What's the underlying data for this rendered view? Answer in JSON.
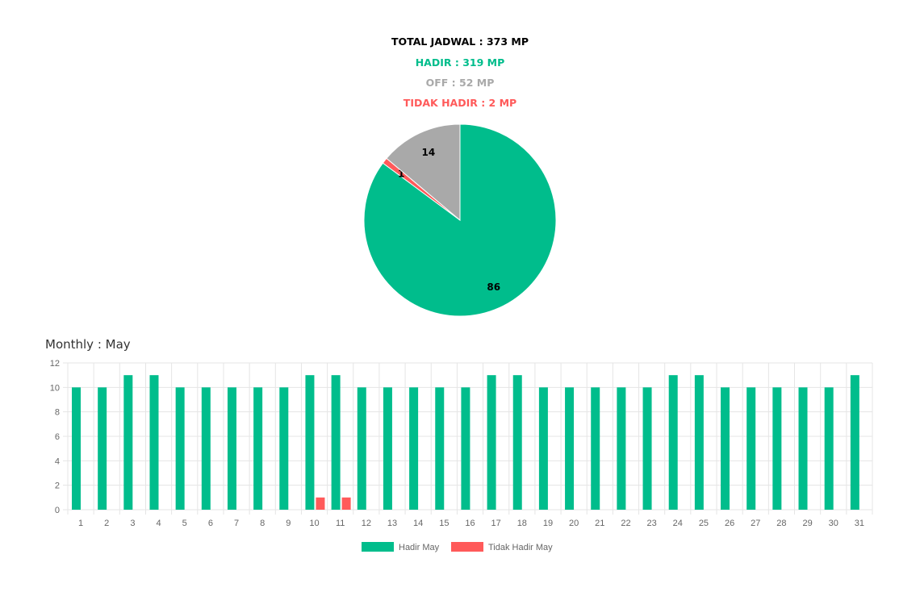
{
  "summary": {
    "total": "TOTAL JADWAL : 373 MP",
    "hadir": "HADIR : 319 MP",
    "off": "OFF : 52 MP",
    "tidak_hadir": "TIDAK HADIR : 2 MP"
  },
  "colors": {
    "hadir": "#00bd8c",
    "off": "#a9a9a9",
    "tidak_hadir": "#ff5a5a",
    "total": "#000000"
  },
  "monthly_title": "Monthly : May",
  "chart_data": [
    {
      "type": "pie",
      "slices": [
        {
          "label": "Hadir",
          "value": 86,
          "color": "#00bd8c"
        },
        {
          "label": "Tidak Hadir",
          "value": 1,
          "color": "#ff5a5a"
        },
        {
          "label": "Off",
          "value": 14,
          "color": "#a9a9a9"
        }
      ]
    },
    {
      "type": "bar",
      "categories": [
        "1",
        "2",
        "3",
        "4",
        "5",
        "6",
        "7",
        "8",
        "9",
        "10",
        "11",
        "12",
        "13",
        "14",
        "15",
        "16",
        "17",
        "18",
        "19",
        "20",
        "21",
        "22",
        "23",
        "24",
        "25",
        "26",
        "27",
        "28",
        "29",
        "30",
        "31"
      ],
      "series": [
        {
          "name": "Hadir May",
          "color": "#00bd8c",
          "values": [
            10,
            10,
            11,
            11,
            10,
            10,
            10,
            10,
            10,
            11,
            11,
            10,
            10,
            10,
            10,
            10,
            11,
            11,
            10,
            10,
            10,
            10,
            10,
            11,
            11,
            10,
            10,
            10,
            10,
            10,
            11
          ]
        },
        {
          "name": "Tidak Hadir May",
          "color": "#ff5a5a",
          "values": [
            0,
            0,
            0,
            0,
            0,
            0,
            0,
            0,
            0,
            1,
            1,
            0,
            0,
            0,
            0,
            0,
            0,
            0,
            0,
            0,
            0,
            0,
            0,
            0,
            0,
            0,
            0,
            0,
            0,
            0,
            0
          ]
        }
      ],
      "ylim": [
        0,
        12
      ],
      "yticks": [
        0,
        2,
        4,
        6,
        8,
        10,
        12
      ],
      "grid": true,
      "legend": "bottom-center"
    }
  ]
}
